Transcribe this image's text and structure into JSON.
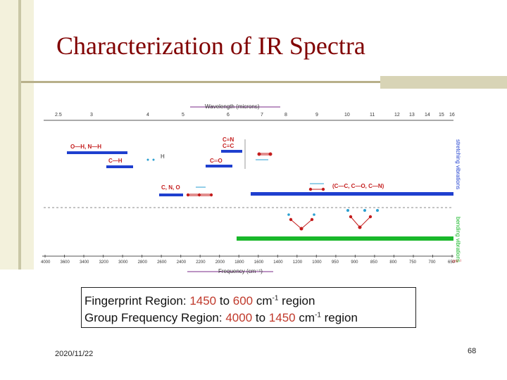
{
  "slide": {
    "title": "Characterization of IR Spectra",
    "date": "2020/11/22",
    "page_number": "68"
  },
  "figure": {
    "wavelength_axis_label": "Wavelength (microns)",
    "frequency_axis_label": "Frequency (cm⁻¹)",
    "wavelength_ticks": [
      "2.5",
      "3",
      "4",
      "5",
      "6",
      "7",
      "8",
      "9",
      "10",
      "11",
      "12",
      "13",
      "14",
      "15",
      "16"
    ],
    "frequency_ticks": [
      "4000",
      "3600",
      "3400",
      "3200",
      "3000",
      "2800",
      "2600",
      "2400",
      "2200",
      "2000",
      "1800",
      "1600",
      "1400",
      "1200",
      "1000",
      "950",
      "900",
      "850",
      "800",
      "750",
      "700",
      "650"
    ],
    "frequency_unit": "cm⁻¹",
    "stretching_label": "stretching vibrations",
    "bending_label": "bending vibrations",
    "labels": {
      "oh_nh": "O—H, N—H",
      "ch": "C—H",
      "cn_triple": "C≡N",
      "cc_triple": "C≡C",
      "co_double": "C═O",
      "cnO": "C, N, O",
      "single_bonds": "(C—C, C—O, C—N)",
      "h_letter": "H"
    }
  },
  "caption": {
    "line1_prefix": "Fingerprint Region: ",
    "line1_from": "1450",
    "line1_mid": " to ",
    "line1_to": "600",
    "line1_unit": " cm",
    "line1_exp": "-1",
    "line1_suffix": " region",
    "line2_prefix": "Group Frequency Region: ",
    "line2_from": "4000",
    "line2_mid": " to ",
    "line2_to": "1450",
    "line2_unit": " cm",
    "line2_exp": "-1",
    "line2_suffix": " region"
  },
  "colors": {
    "title": "#800000",
    "band_blue": "#1f3fcf",
    "band_green": "#19b82a",
    "highlight": "#c0392b",
    "atom_red": "#c41d1d",
    "arrow_cyan": "#2a9fd0"
  }
}
